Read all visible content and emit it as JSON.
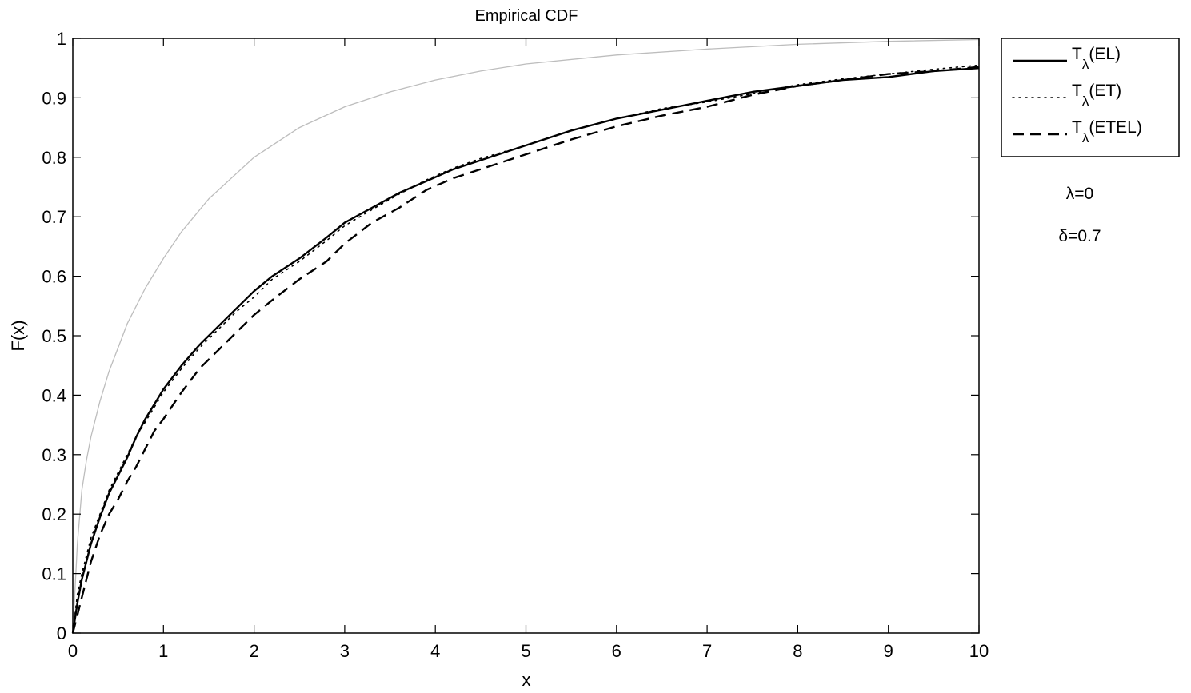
{
  "chart_data": {
    "type": "line",
    "title": "Empirical CDF",
    "xlabel": "x",
    "ylabel": "F(x)",
    "xlim": [
      0,
      10
    ],
    "ylim": [
      0,
      1
    ],
    "grid": false,
    "legend_position": "outside-top-right",
    "xticks": [
      "0",
      "1",
      "2",
      "3",
      "4",
      "5",
      "6",
      "7",
      "8",
      "9",
      "10"
    ],
    "yticks": [
      "0",
      "0.1",
      "0.2",
      "0.3",
      "0.4",
      "0.5",
      "0.6",
      "0.7",
      "0.8",
      "0.9",
      "1"
    ],
    "annotations": [
      "λ=0",
      "δ=0.7"
    ],
    "series": [
      {
        "name": "T_λ(EL)",
        "legend_main": "T",
        "legend_sub": "λ",
        "legend_tail": "(EL)",
        "style": "solid",
        "color": "#000000",
        "x": [
          0,
          0.05,
          0.1,
          0.2,
          0.3,
          0.4,
          0.5,
          0.6,
          0.7,
          0.8,
          0.9,
          1.0,
          1.2,
          1.4,
          1.6,
          1.8,
          2.0,
          2.2,
          2.5,
          2.8,
          3.0,
          3.3,
          3.6,
          3.9,
          4.2,
          4.5,
          5.0,
          5.5,
          6.0,
          6.5,
          7.0,
          7.5,
          8.0,
          8.5,
          9.0,
          9.5,
          10
        ],
        "y": [
          0,
          0.05,
          0.09,
          0.15,
          0.195,
          0.235,
          0.265,
          0.295,
          0.33,
          0.36,
          0.385,
          0.41,
          0.45,
          0.485,
          0.515,
          0.545,
          0.575,
          0.6,
          0.63,
          0.665,
          0.69,
          0.715,
          0.74,
          0.76,
          0.78,
          0.795,
          0.82,
          0.845,
          0.865,
          0.88,
          0.895,
          0.91,
          0.92,
          0.93,
          0.935,
          0.945,
          0.95
        ]
      },
      {
        "name": "T_λ(ET)",
        "legend_main": "T",
        "legend_sub": "λ",
        "legend_tail": "(ET)",
        "style": "dotted",
        "color": "#000000",
        "x": [
          0,
          0.05,
          0.1,
          0.2,
          0.3,
          0.4,
          0.5,
          0.6,
          0.7,
          0.8,
          0.9,
          1.0,
          1.2,
          1.4,
          1.6,
          1.8,
          2.0,
          2.2,
          2.5,
          2.8,
          3.0,
          3.3,
          3.6,
          3.9,
          4.2,
          4.5,
          5.0,
          5.5,
          6.0,
          6.5,
          7.0,
          7.5,
          8.0,
          8.5,
          9.0,
          9.5,
          10
        ],
        "y": [
          0,
          0.065,
          0.1,
          0.16,
          0.2,
          0.24,
          0.27,
          0.3,
          0.33,
          0.355,
          0.38,
          0.405,
          0.445,
          0.48,
          0.51,
          0.54,
          0.565,
          0.595,
          0.625,
          0.66,
          0.685,
          0.712,
          0.738,
          0.762,
          0.782,
          0.798,
          0.82,
          0.845,
          0.865,
          0.882,
          0.893,
          0.907,
          0.922,
          0.932,
          0.94,
          0.948,
          0.955
        ]
      },
      {
        "name": "T_λ(ETEL)",
        "legend_main": "T",
        "legend_sub": "λ",
        "legend_tail": "(ETEL)",
        "style": "dashed",
        "color": "#000000",
        "x": [
          0,
          0.05,
          0.1,
          0.2,
          0.3,
          0.4,
          0.5,
          0.6,
          0.7,
          0.8,
          0.9,
          1.0,
          1.2,
          1.4,
          1.6,
          1.8,
          2.0,
          2.2,
          2.5,
          2.8,
          3.0,
          3.3,
          3.6,
          3.9,
          4.2,
          4.5,
          5.0,
          5.5,
          6.0,
          6.5,
          7.0,
          7.5,
          8.0,
          8.5,
          9.0,
          9.5,
          10
        ],
        "y": [
          0,
          0.03,
          0.06,
          0.12,
          0.165,
          0.2,
          0.225,
          0.255,
          0.28,
          0.31,
          0.34,
          0.36,
          0.405,
          0.445,
          0.475,
          0.505,
          0.535,
          0.56,
          0.595,
          0.625,
          0.655,
          0.69,
          0.715,
          0.745,
          0.765,
          0.78,
          0.805,
          0.83,
          0.852,
          0.87,
          0.885,
          0.905,
          0.92,
          0.93,
          0.94,
          0.945,
          0.952
        ]
      },
      {
        "name": "",
        "style": "solid",
        "color": "#bdbdbd",
        "x": [
          0,
          0.05,
          0.1,
          0.15,
          0.2,
          0.3,
          0.4,
          0.5,
          0.6,
          0.8,
          1.0,
          1.2,
          1.5,
          2.0,
          2.5,
          3.0,
          3.5,
          4.0,
          4.5,
          5.0,
          6.0,
          7.0,
          8.0,
          9.0,
          10
        ],
        "y": [
          0,
          0.15,
          0.24,
          0.29,
          0.33,
          0.39,
          0.44,
          0.48,
          0.52,
          0.58,
          0.63,
          0.675,
          0.73,
          0.8,
          0.85,
          0.885,
          0.91,
          0.93,
          0.945,
          0.957,
          0.972,
          0.982,
          0.99,
          0.995,
          0.998
        ]
      }
    ]
  }
}
